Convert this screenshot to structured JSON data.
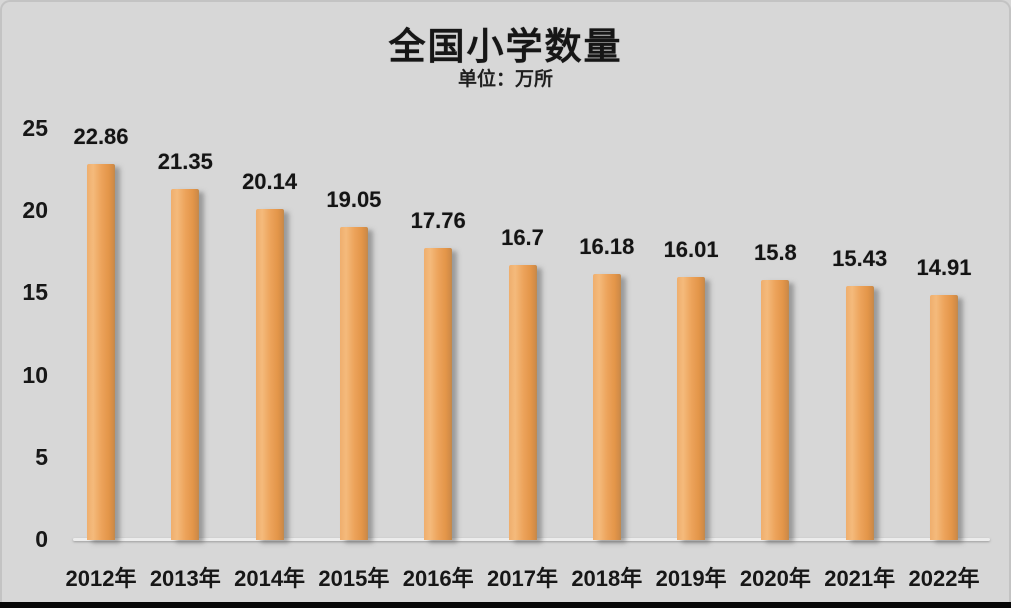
{
  "chart_data": {
    "type": "bar",
    "title": "全国小学数量",
    "subtitle": "单位：万所",
    "unit": "万所",
    "categories": [
      "2012年",
      "2013年",
      "2014年",
      "2015年",
      "2016年",
      "2017年",
      "2018年",
      "2019年",
      "2020年",
      "2021年",
      "2022年"
    ],
    "values": [
      22.86,
      21.35,
      20.14,
      19.05,
      17.76,
      16.7,
      16.18,
      16.01,
      15.8,
      15.43,
      14.91
    ],
    "value_labels": [
      "22.86",
      "21.35",
      "20.14",
      "19.05",
      "17.76",
      "16.7",
      "16.18",
      "16.01",
      "15.8",
      "15.43",
      "14.91"
    ],
    "y_ticks": [
      25,
      20,
      15,
      10,
      5,
      0
    ],
    "ylim": [
      0,
      25
    ],
    "grid": false,
    "legend": false,
    "colors": {
      "background": "#d7d7d7",
      "bar_light": "#f4ba7c",
      "bar_mid": "#eda45c",
      "bar_dark": "#d08b47",
      "text": "#161616",
      "axis_line": "#ececec",
      "bottom_strip": "#070707"
    }
  }
}
